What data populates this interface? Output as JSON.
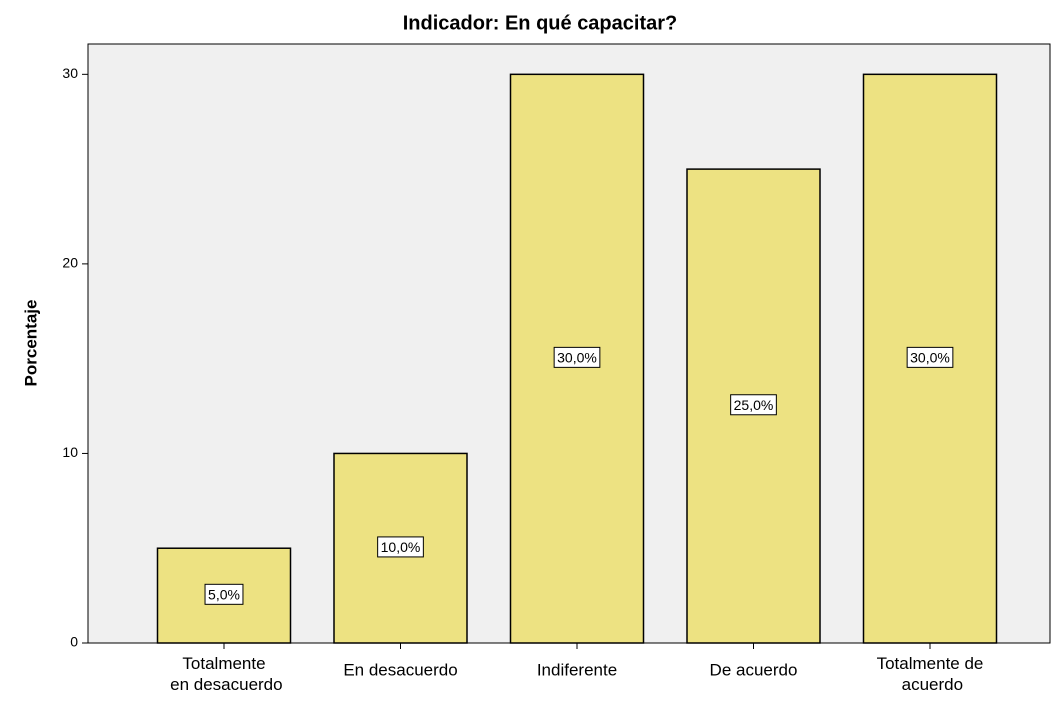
{
  "chart_data": {
    "type": "bar",
    "title": "Indicador: En qué capacitar?",
    "ylabel": "Porcentaje",
    "categories": [
      "Totalmente en desacuerdo",
      "En desacuerdo",
      "Indiferente",
      "De acuerdo",
      "Totalmente de acuerdo"
    ],
    "values": [
      5,
      10,
      30,
      25,
      30
    ],
    "value_labels": [
      "5,0%",
      "10,0%",
      "30,0%",
      "25,0%",
      "30,0%"
    ],
    "color": "#ede282",
    "ylim": [
      0,
      31.6
    ],
    "yticks": [
      0,
      10,
      20,
      30
    ],
    "grid": false
  }
}
